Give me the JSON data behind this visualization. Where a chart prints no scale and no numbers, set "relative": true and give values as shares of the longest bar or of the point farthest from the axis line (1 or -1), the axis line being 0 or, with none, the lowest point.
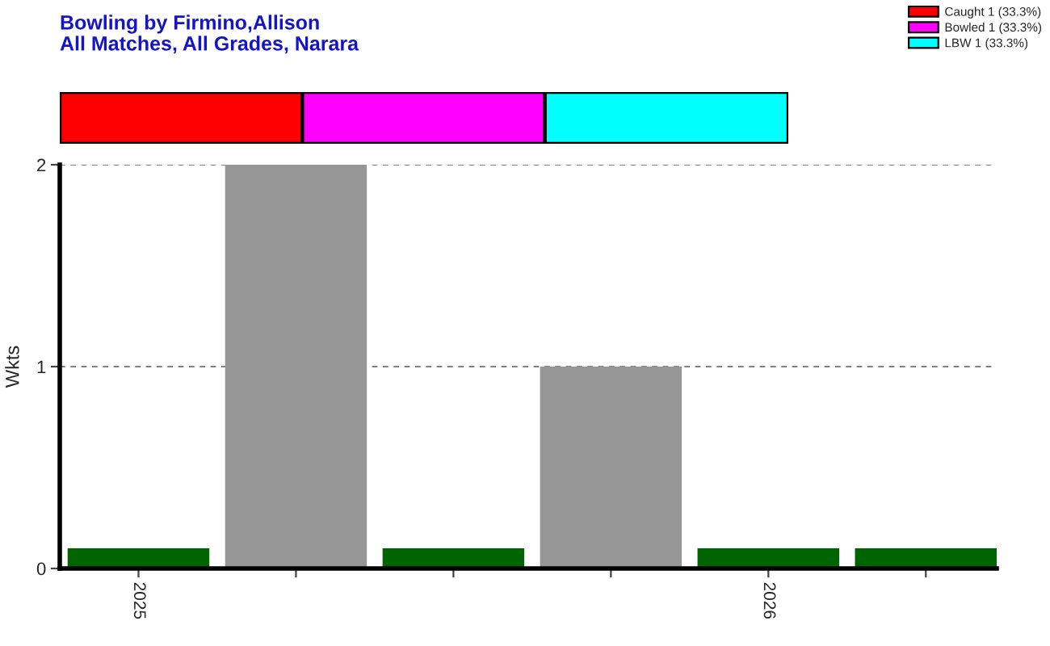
{
  "chart_data": [
    {
      "type": "bar",
      "title": "Bowling by Firmino,Allison",
      "subtitle": "All Matches, All Grades, Narara",
      "orientation": "horizontal",
      "stacked": true,
      "relative": true,
      "categories": [
        null
      ],
      "series": [
        {
          "name": "Caught 1 (33.3%)",
          "color": "#ff0000",
          "values": [
            0.333
          ]
        },
        {
          "name": "Bowled 1 (33.3%)",
          "color": "#ff00ff",
          "values": [
            0.333
          ]
        },
        {
          "name": "LBW 1 (33.3%)",
          "color": "#00ffff",
          "values": [
            0.334
          ]
        }
      ],
      "legend": "top right"
    },
    {
      "type": "bar",
      "categories": [
        "2025",
        null,
        null,
        null,
        "2026",
        null
      ],
      "values": [
        0.1,
        2,
        0.1,
        1,
        0.1,
        0.1
      ],
      "colors": [
        "#006400",
        "#969696",
        "#006400",
        "#969696",
        "#006400",
        "#006400"
      ],
      "ylabel": "Wkts",
      "ylim": [
        0,
        2
      ],
      "yticks": [
        0,
        1,
        2
      ],
      "grid": "y"
    }
  ]
}
